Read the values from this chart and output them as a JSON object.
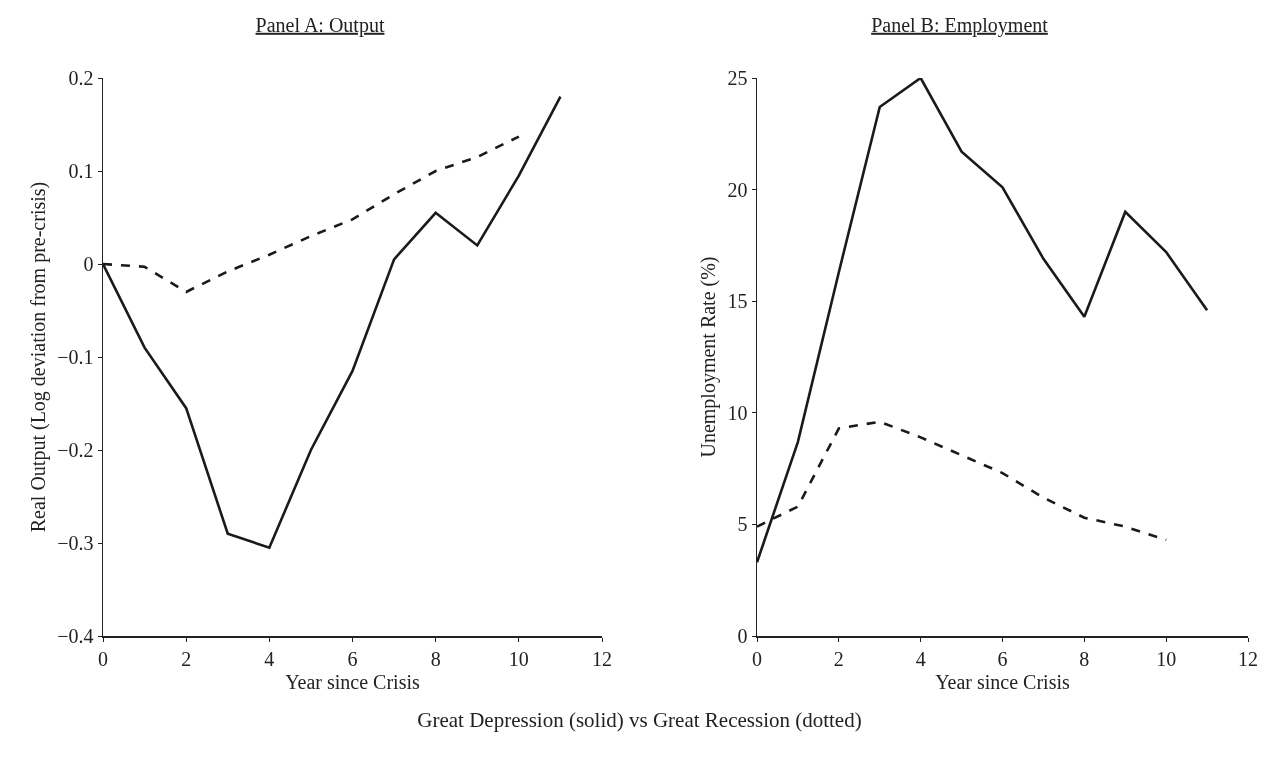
{
  "chart_data": [
    {
      "type": "line",
      "title": "Panel A: Output",
      "xlabel": "Year since Crisis",
      "ylabel": "Real Output (Log deviation from pre-crisis)",
      "x": [
        0,
        1,
        2,
        3,
        4,
        5,
        6,
        7,
        8,
        9,
        10,
        11
      ],
      "xlim": [
        0,
        12
      ],
      "xticks": [
        0,
        2,
        4,
        6,
        8,
        10,
        12
      ],
      "ylim": [
        -0.4,
        0.2
      ],
      "yticks": [
        -0.4,
        -0.3,
        -0.2,
        -0.1,
        0,
        0.1,
        0.2
      ],
      "series": [
        {
          "color": "#1a1a1a",
          "line_style": "solid",
          "values": [
            0,
            -0.09,
            -0.155,
            -0.29,
            -0.305,
            -0.2,
            -0.115,
            0.005,
            0.055,
            0.02,
            0.095,
            0.18
          ]
        },
        {
          "color": "#1a1a1a",
          "line_style": "dashed",
          "values": [
            0,
            -0.003,
            -0.03,
            -0.008,
            0.01,
            0.03,
            0.048,
            0.075,
            0.1,
            0.115,
            0.137,
            null
          ]
        }
      ],
      "annotations": [
        "Great Depression (solid) vs Great Recession (dotted)"
      ]
    },
    {
      "type": "line",
      "title": "Panel B: Employment",
      "xlabel": "Year since Crisis",
      "ylabel": "Unemployment Rate (%)",
      "x": [
        0,
        1,
        2,
        3,
        4,
        5,
        6,
        7,
        8,
        9,
        10,
        11
      ],
      "xlim": [
        0,
        12
      ],
      "xticks": [
        0,
        2,
        4,
        6,
        8,
        10,
        12
      ],
      "ylim": [
        0,
        25
      ],
      "yticks": [
        0,
        5,
        10,
        15,
        20,
        25
      ],
      "series": [
        {
          "color": "#1a1a1a",
          "line_style": "solid",
          "values": [
            3.3,
            8.7,
            16.3,
            23.7,
            25,
            21.7,
            20.1,
            16.9,
            14.3,
            19,
            17.2,
            14.6
          ]
        },
        {
          "color": "#1a1a1a",
          "line_style": "dashed",
          "values": [
            4.9,
            5.8,
            9.3,
            9.6,
            8.9,
            8.1,
            7.3,
            6.2,
            5.3,
            4.9,
            4.3,
            null
          ]
        }
      ]
    }
  ]
}
